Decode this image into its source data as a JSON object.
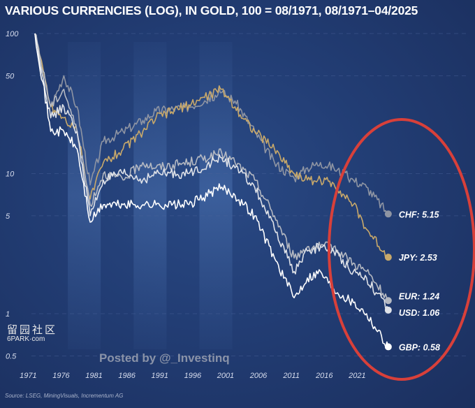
{
  "chart_data": {
    "type": "line",
    "title": "VARIOUS CURRENCIES (LOG), IN GOLD, 100 = 08/1971, 08/1971–04/2025",
    "yscale": "log",
    "ylim": [
      0.5,
      100
    ],
    "yticks": [
      100,
      50,
      10,
      5,
      1,
      0.5
    ],
    "ytick_labels": [
      "100",
      "50",
      "10",
      "5",
      "1",
      "0.5"
    ],
    "xlim": [
      1971.6,
      2025.3
    ],
    "xticks": [
      "1971",
      "1976",
      "1981",
      "1986",
      "1991",
      "1996",
      "2001",
      "2006",
      "2011",
      "2016",
      "2021"
    ],
    "grid": true,
    "x": [
      1971.6,
      1974,
      1976,
      1978,
      1980,
      1982,
      1985,
      1988,
      1990,
      1995,
      2000,
      2002,
      2005,
      2008,
      2011,
      2013,
      2015,
      2017,
      2020,
      2022,
      2025.3
    ],
    "series": [
      {
        "name": "CHF",
        "end_label": "CHF: 5.15",
        "color": "#8f95a3",
        "values": [
          100,
          30,
          50,
          30,
          8.3,
          17,
          20,
          24,
          28,
          30,
          38,
          33,
          20,
          12,
          9.3,
          11,
          12,
          11,
          9,
          8,
          5.15
        ]
      },
      {
        "name": "JPY",
        "end_label": "JPY: 2.53",
        "color": "#c9a96a",
        "values": [
          100,
          30,
          25,
          20,
          6.6,
          12,
          15,
          20,
          25,
          31,
          40,
          30,
          20,
          15,
          10,
          9,
          9,
          8.5,
          6,
          4,
          2.53
        ]
      },
      {
        "name": "EUR",
        "end_label": "EUR: 1.24",
        "color": "#b5b9c2",
        "values": [
          100,
          30,
          40,
          20,
          6,
          10,
          9,
          12,
          11,
          12,
          14,
          12,
          9,
          5,
          2.5,
          3,
          3,
          3,
          2.3,
          2,
          1.24
        ]
      },
      {
        "name": "USD",
        "end_label": "USD: 1.06",
        "color": "#dfe2e8",
        "values": [
          100,
          25,
          30,
          20,
          5,
          9,
          10,
          9,
          10,
          10,
          13,
          11,
          8,
          4,
          2,
          2.8,
          3,
          2.8,
          2,
          1.8,
          1.06
        ]
      },
      {
        "name": "GBP",
        "end_label": "GBP: 0.58",
        "color": "#ffffff",
        "values": [
          100,
          20,
          20,
          15,
          4.5,
          6,
          6,
          6,
          6,
          6,
          8,
          7,
          5,
          2.5,
          1.3,
          1.8,
          2,
          1.5,
          1.2,
          1,
          0.58
        ]
      }
    ],
    "annotation": "red ellipse highlighting end values",
    "source": "Source: LSEG, MiningVisuals, Incrementum AG"
  },
  "overlay": {
    "posted_by": "Posted by @_Investinq",
    "watermark_cn": "留园社区",
    "watermark_en": "6PARK·com"
  }
}
